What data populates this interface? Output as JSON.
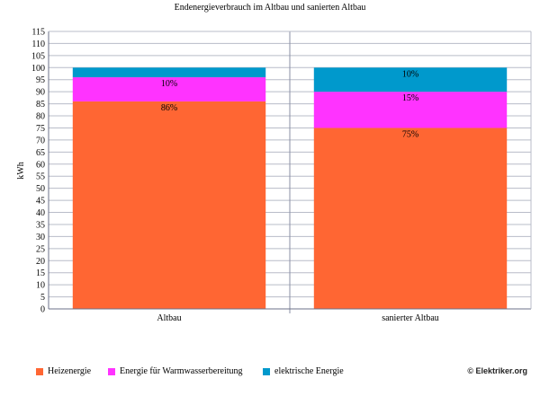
{
  "chart_data": {
    "type": "bar",
    "stacked": true,
    "title": "Endenergieverbrauch im Altbau und sanierten Altbau",
    "ylabel": "kWh",
    "xlabel": "",
    "ylim": [
      0,
      115
    ],
    "yticks": [
      0,
      5,
      10,
      15,
      20,
      25,
      30,
      35,
      40,
      45,
      50,
      55,
      60,
      65,
      70,
      75,
      80,
      85,
      90,
      95,
      100,
      105,
      110,
      115
    ],
    "grid": true,
    "legend_position": "bottom",
    "categories": [
      "Altbau",
      "sanierter Altbau"
    ],
    "series": [
      {
        "name": "Heizenergie",
        "color": "#ff6633",
        "values": [
          86,
          75
        ],
        "labels": [
          "86%",
          "75%"
        ]
      },
      {
        "name": "Energie für Warmwasserbereitung",
        "color": "#ff33ff",
        "values": [
          10,
          15
        ],
        "labels": [
          "10%",
          "15%"
        ]
      },
      {
        "name": "elektrische Energie",
        "color": "#0099cc",
        "values": [
          4,
          10
        ],
        "labels": [
          "",
          "10%"
        ]
      }
    ]
  },
  "credit": "© Elektriker.org"
}
